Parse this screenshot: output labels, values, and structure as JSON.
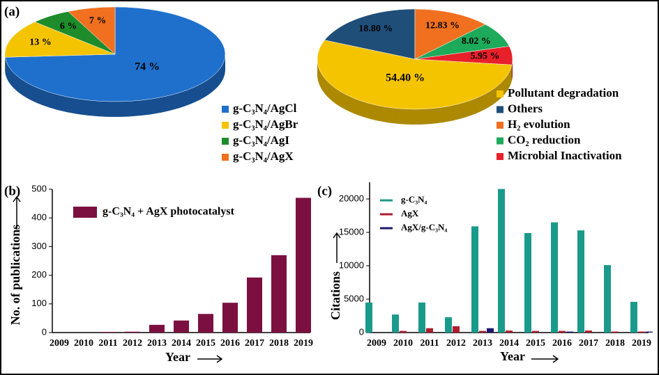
{
  "chart_data": [
    {
      "type": "pie",
      "panel_label": "(a)",
      "categories": [
        "g-C₃N₄/AgCl",
        "g-C₃N₄/AgBr",
        "g-C₃N₄/AgI",
        "g-C₃N₄/AgX"
      ],
      "values": [
        74,
        13,
        6,
        7
      ],
      "value_labels": [
        "74 %",
        "13 %",
        "6 %",
        "7 %"
      ],
      "colors": [
        "#1f70cc",
        "#f5c400",
        "#1e8c2a",
        "#f07020"
      ]
    },
    {
      "type": "pie",
      "categories": [
        "Pollutant degradation",
        "Others",
        "H₂ evolution",
        "CO₂ reduction",
        "Microbial Inactivation"
      ],
      "values": [
        54.4,
        18.8,
        12.83,
        8.02,
        5.95
      ],
      "value_labels": [
        "54.40 %",
        "18.80 %",
        "12.83 %",
        "8.02 %",
        "5.95 %"
      ],
      "colors": [
        "#f5c400",
        "#1f4e79",
        "#f07020",
        "#1daa5a",
        "#e8202a"
      ]
    },
    {
      "type": "bar",
      "panel_label": "(b)",
      "x_label": "Year",
      "y_label": "No. of publications",
      "categories": [
        "2009",
        "2010",
        "2011",
        "2012",
        "2013",
        "2014",
        "2015",
        "2016",
        "2017",
        "2018",
        "2019"
      ],
      "series": [
        {
          "name": "g-C₃N₄ + AgX photocatalyst",
          "color": "#7b1040",
          "values": [
            0,
            0,
            2,
            3,
            27,
            42,
            65,
            104,
            192,
            270,
            470
          ]
        }
      ],
      "ylim": [
        0,
        500
      ],
      "yticks": [
        0,
        100,
        200,
        300,
        400,
        500
      ]
    },
    {
      "type": "bar",
      "panel_label": "(c)",
      "x_label": "Year",
      "y_label": "Citations",
      "categories": [
        "2009",
        "2010",
        "2011",
        "2012",
        "2013",
        "2014",
        "2015",
        "2016",
        "2017",
        "2018",
        "2019"
      ],
      "series": [
        {
          "name": "g-C₃N₄",
          "color": "#1a9a8a",
          "values": [
            4500,
            2700,
            4500,
            2300,
            15900,
            21500,
            14900,
            16500,
            15300,
            10100,
            4600
          ]
        },
        {
          "name": "AgX",
          "color": "#b01c2e",
          "values": [
            0,
            250,
            650,
            950,
            250,
            300,
            250,
            250,
            300,
            150,
            150
          ]
        },
        {
          "name": "AgX/g-C₃N₄",
          "color": "#1a1a6e",
          "values": [
            0,
            0,
            0,
            0,
            650,
            0,
            0,
            150,
            0,
            0,
            150
          ]
        }
      ],
      "ylim": [
        0,
        22500
      ],
      "yticks": [
        0,
        5000,
        10000,
        15000,
        20000
      ]
    }
  ]
}
